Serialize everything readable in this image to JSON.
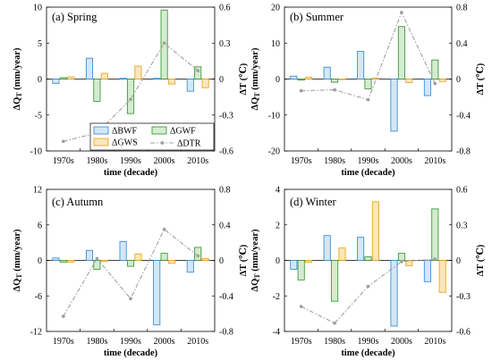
{
  "categories": [
    "1970s",
    "1980s",
    "1990s",
    "2000s",
    "2010s"
  ],
  "colors": {
    "BWF": {
      "stroke": "#3d8fd6",
      "fill": "#d3e7f7"
    },
    "GWF": {
      "stroke": "#3f9a3a",
      "fill": "#d4ecd0"
    },
    "GWS": {
      "stroke": "#e8a72a",
      "fill": "#fbe6bb"
    },
    "DTR": "#a0a0a0"
  },
  "legend": {
    "BWF": "ΔBWF",
    "GWF": "ΔGWF",
    "GWS": "ΔGWS",
    "DTR": "ΔDTR"
  },
  "chart_data": [
    {
      "type": "bar",
      "title": "(a) Spring",
      "xlabel": "time (decade)",
      "ylabel": "ΔQT (mm/year)",
      "y2label": "ΔT (℃)",
      "categories": [
        "1970s",
        "1980s",
        "1990s",
        "2000s",
        "2010s"
      ],
      "ylim": [
        -10,
        10
      ],
      "yticks": [
        "-10",
        "-5",
        "0",
        "5",
        "10"
      ],
      "y2lim": [
        -0.6,
        0.6
      ],
      "y2ticks": [
        "-0.6",
        "-0.3",
        "0",
        "0.3",
        "0.6"
      ],
      "series": [
        {
          "name": "ΔBWF",
          "values": [
            -0.6,
            2.9,
            0.1,
            0.1,
            -1.7
          ]
        },
        {
          "name": "ΔGWF",
          "values": [
            0.2,
            -3.1,
            -4.8,
            9.6,
            1.7
          ]
        },
        {
          "name": "ΔGWS",
          "values": [
            0.3,
            0.8,
            1.8,
            -0.7,
            -1.2
          ]
        },
        {
          "name": "ΔDTR",
          "type": "line",
          "axis": "right",
          "values": [
            -0.52,
            -0.45,
            -0.17,
            0.3,
            0.07
          ]
        }
      ],
      "legend_position": "bottom-right"
    },
    {
      "type": "bar",
      "title": "(b) Summer",
      "xlabel": "time (decade)",
      "ylabel": "ΔQT (mm/year)",
      "y2label": "ΔT (℃)",
      "categories": [
        "1970s",
        "1980s",
        "1990s",
        "2000s",
        "2010s"
      ],
      "ylim": [
        -20,
        20
      ],
      "yticks": [
        "-20",
        "-10",
        "0",
        "10",
        "20"
      ],
      "y2lim": [
        -0.8,
        0.8
      ],
      "y2ticks": [
        "-0.8",
        "-0.4",
        "0",
        "0.4",
        "0.8"
      ],
      "series": [
        {
          "name": "ΔBWF",
          "values": [
            0.8,
            3.3,
            7.7,
            -14.5,
            -4.6
          ]
        },
        {
          "name": "ΔGWF",
          "values": [
            -0.3,
            -0.9,
            -2.7,
            14.6,
            5.3
          ]
        },
        {
          "name": "ΔGWS",
          "values": [
            0.5,
            0.0,
            0.3,
            -1.0,
            -0.7
          ]
        },
        {
          "name": "ΔDTR",
          "type": "line",
          "axis": "right",
          "values": [
            -0.13,
            -0.12,
            -0.23,
            0.74,
            -0.05
          ]
        }
      ]
    },
    {
      "type": "bar",
      "title": "(c) Autumn",
      "xlabel": "time (decade)",
      "ylabel": "ΔQT (mm/year)",
      "y2label": "ΔT (℃)",
      "categories": [
        "1970s",
        "1980s",
        "1990s",
        "2000s",
        "2010s"
      ],
      "ylim": [
        -12,
        12
      ],
      "yticks": [
        "-12",
        "-6",
        "0",
        "6",
        "12"
      ],
      "y2lim": [
        -0.8,
        0.8
      ],
      "y2ticks": [
        "-0.8",
        "-0.4",
        "0",
        "0.4",
        "0.8"
      ],
      "series": [
        {
          "name": "ΔBWF",
          "values": [
            0.4,
            1.7,
            3.2,
            -10.9,
            -2.0
          ]
        },
        {
          "name": "ΔGWF",
          "values": [
            -0.3,
            -1.5,
            -1.0,
            1.2,
            2.2
          ]
        },
        {
          "name": "ΔGWS",
          "values": [
            -0.3,
            -0.2,
            1.1,
            -0.5,
            0.3
          ]
        },
        {
          "name": "ΔDTR",
          "type": "line",
          "axis": "right",
          "values": [
            -0.63,
            0.02,
            -0.43,
            0.35,
            0.05
          ]
        }
      ]
    },
    {
      "type": "bar",
      "title": "(d) Winter",
      "xlabel": "time (decade)",
      "ylabel": "ΔQT (mm/year)",
      "y2label": "ΔT (℃)",
      "categories": [
        "1970s",
        "1980s",
        "1990s",
        "2000s",
        "2010s"
      ],
      "ylim": [
        -4,
        4
      ],
      "yticks": [
        "-4",
        "-2",
        "0",
        "2",
        "4"
      ],
      "y2lim": [
        -0.6,
        0.6
      ],
      "y2ticks": [
        "-0.6",
        "-0.3",
        "0",
        "0.3",
        "0.6"
      ],
      "series": [
        {
          "name": "ΔBWF",
          "values": [
            -0.5,
            1.4,
            1.3,
            -3.7,
            -1.2
          ]
        },
        {
          "name": "ΔGWF",
          "values": [
            -1.1,
            -2.3,
            0.2,
            0.4,
            2.9
          ]
        },
        {
          "name": "ΔGWS",
          "values": [
            -0.1,
            0.7,
            3.3,
            -0.3,
            -1.8
          ]
        },
        {
          "name": "ΔDTR",
          "type": "line",
          "axis": "right",
          "values": [
            -0.39,
            -0.53,
            -0.22,
            -0.01,
            0.01
          ]
        }
      ]
    }
  ]
}
